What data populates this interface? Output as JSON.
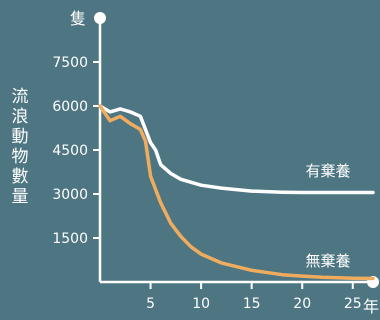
{
  "chart_data": {
    "type": "line",
    "ylabel": "流浪動物數量",
    "y_unit": "隻",
    "x_unit": "年",
    "xlim": [
      0,
      27
    ],
    "ylim": [
      0,
      9000
    ],
    "x_ticks": [
      5,
      10,
      15,
      20,
      25
    ],
    "y_ticks": [
      1500,
      3000,
      4500,
      6000,
      7500
    ],
    "series": [
      {
        "name": "有棄養",
        "color": "#ffffff",
        "x": [
          0,
          1,
          2,
          3,
          4,
          4.5,
          5,
          5.5,
          6,
          7,
          8,
          10,
          12,
          15,
          18,
          20,
          22,
          25,
          27
        ],
        "y": [
          6000,
          5800,
          5900,
          5800,
          5650,
          5200,
          4750,
          4500,
          4000,
          3700,
          3500,
          3300,
          3200,
          3100,
          3060,
          3050,
          3050,
          3050,
          3050
        ]
      },
      {
        "name": "無棄養",
        "color": "#f0ac5e",
        "x": [
          0,
          1,
          2,
          3,
          4,
          4.5,
          5,
          6,
          7,
          8,
          9,
          10,
          12,
          15,
          18,
          20,
          22,
          25,
          27
        ],
        "y": [
          6000,
          5500,
          5650,
          5400,
          5200,
          4800,
          3600,
          2700,
          2000,
          1550,
          1200,
          950,
          650,
          400,
          250,
          200,
          160,
          130,
          120
        ]
      }
    ]
  }
}
